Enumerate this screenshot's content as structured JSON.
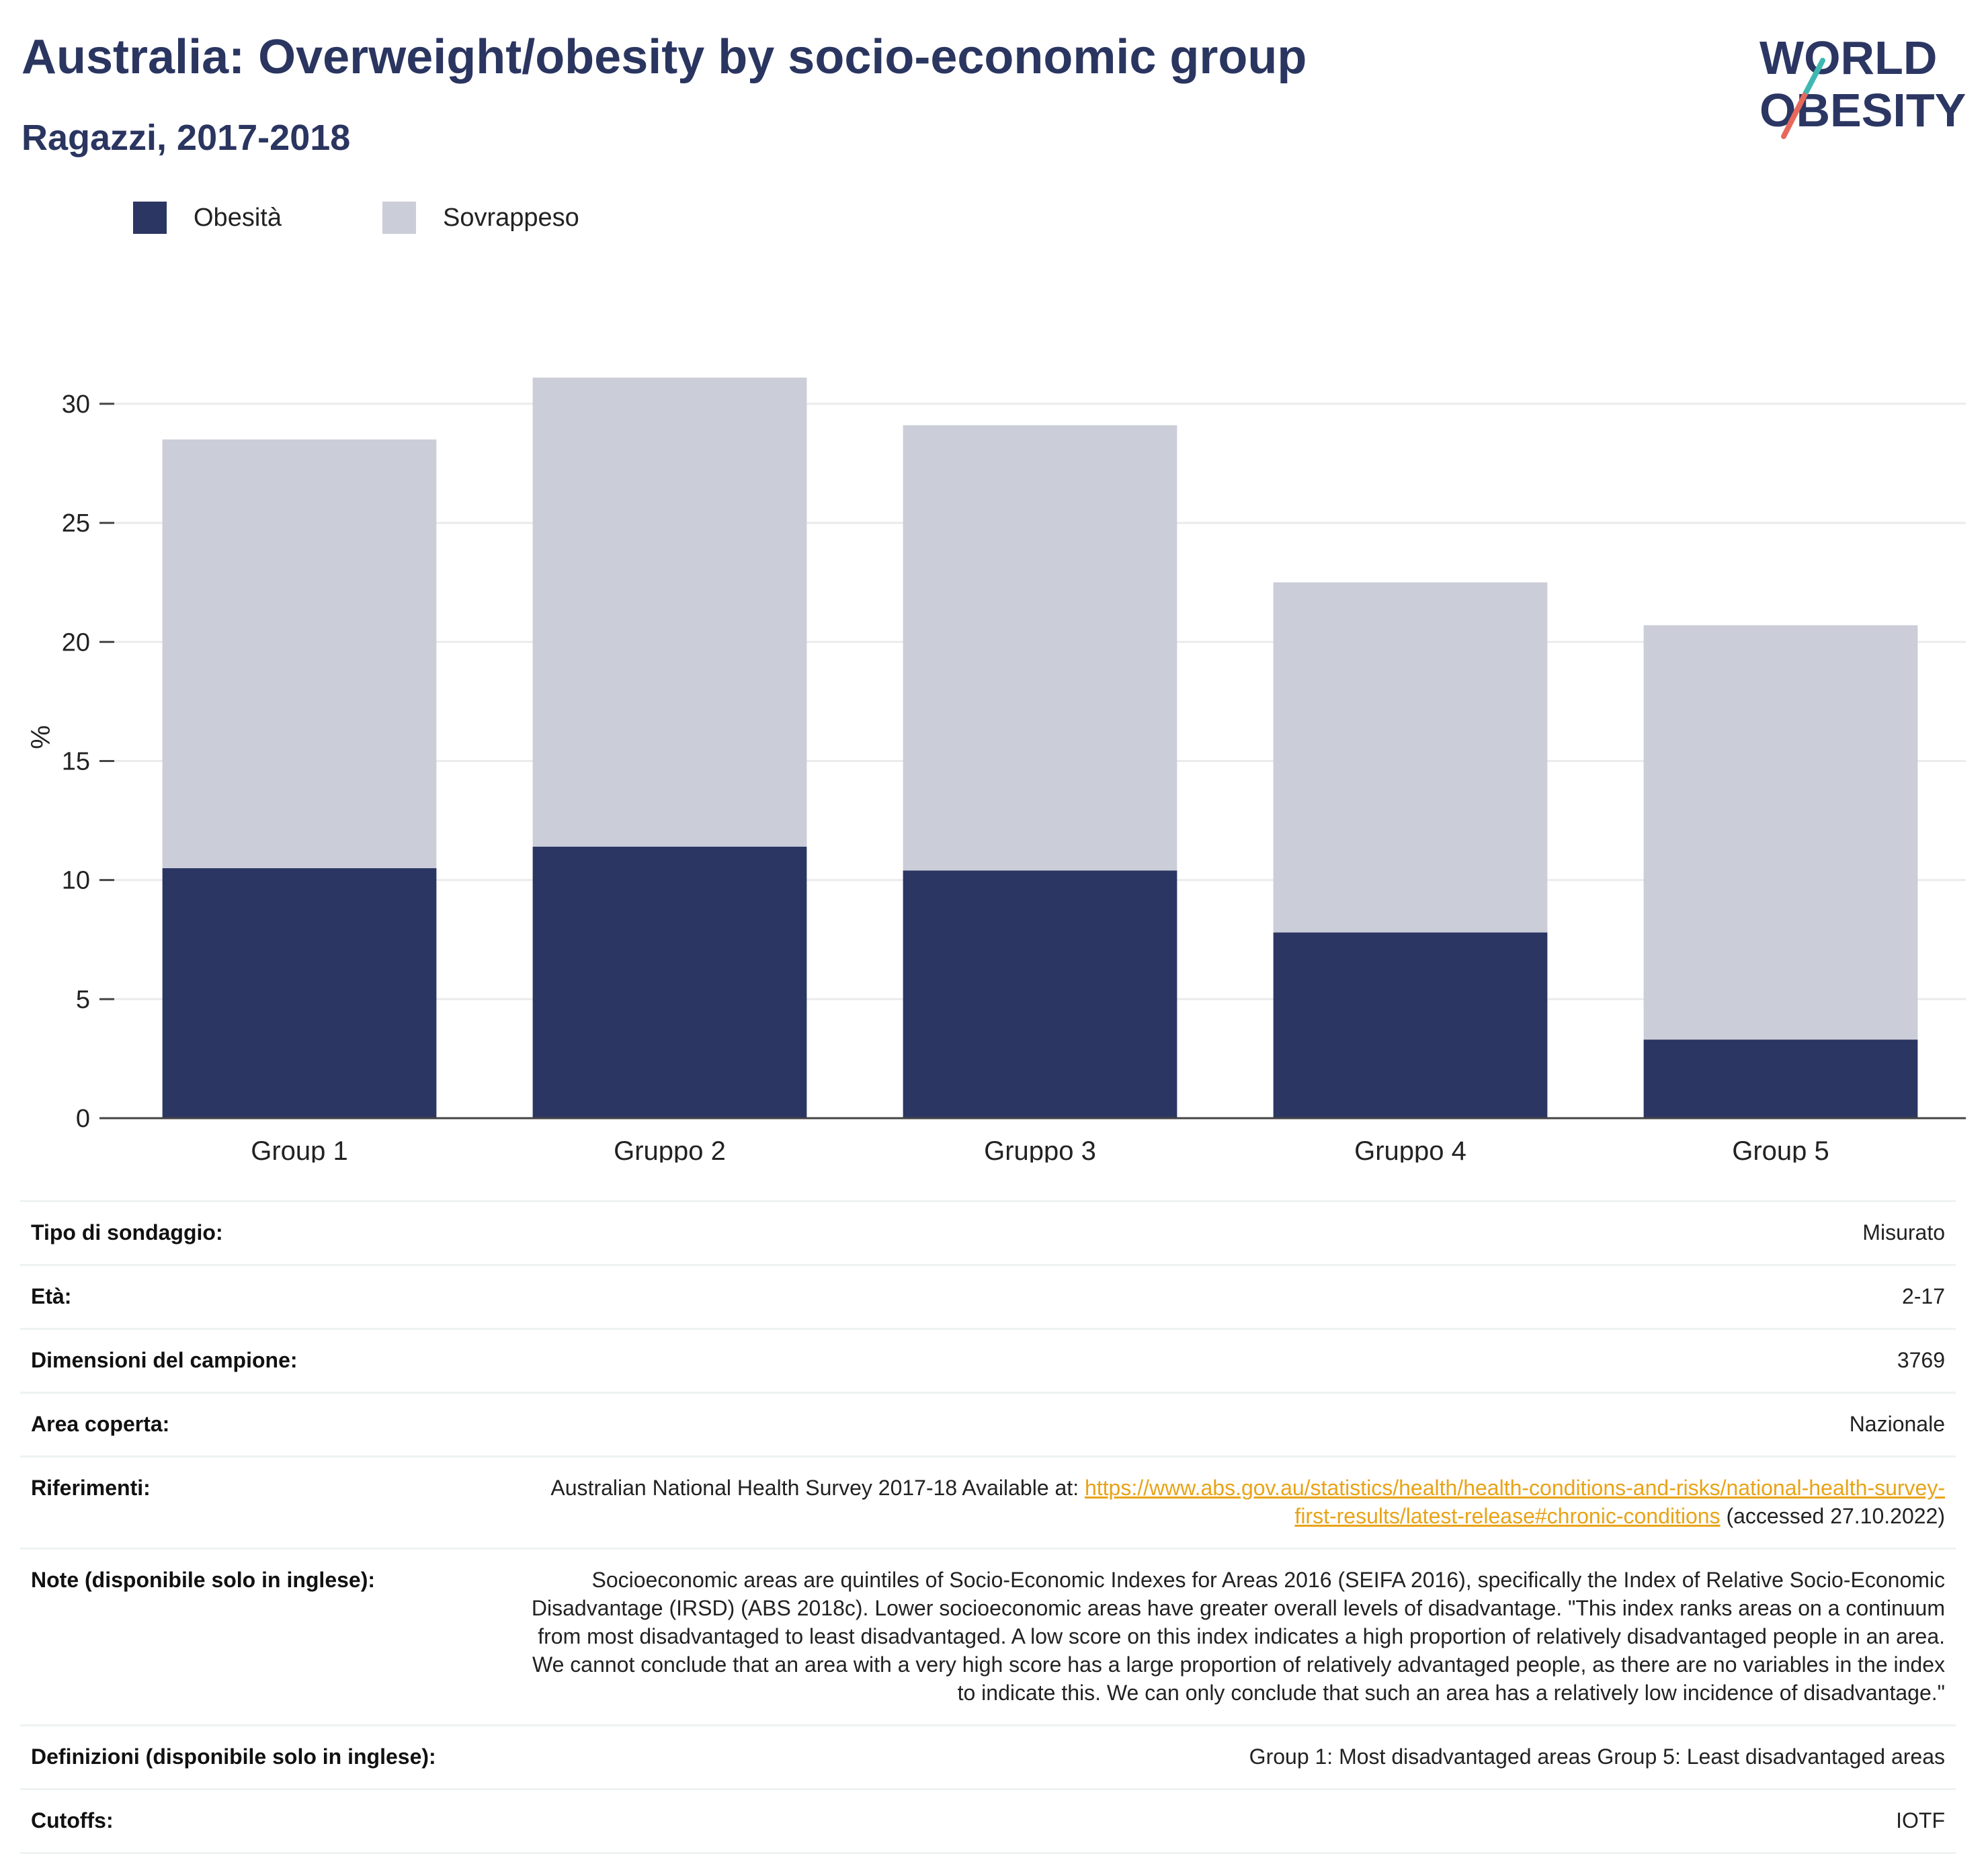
{
  "header": {
    "title": "Australia: Overweight/obesity by socio-economic group",
    "subtitle": "Ragazzi, 2017-2018",
    "logo_line1": "WORLD",
    "logo_line2": "OBESITY"
  },
  "legend": [
    {
      "label": "Obesità",
      "color": "#2b3663"
    },
    {
      "label": "Sovrappeso",
      "color": "#cbcdd8"
    }
  ],
  "chart_data": {
    "type": "bar",
    "stacked": true,
    "categories": [
      "Group 1",
      "Gruppo 2",
      "Gruppo 3",
      "Gruppo 4",
      "Group 5"
    ],
    "series": [
      {
        "name": "Obesità",
        "values": [
          10.5,
          11.4,
          10.4,
          7.8,
          3.3
        ],
        "color": "#2b3663"
      },
      {
        "name": "Sovrappeso",
        "values": [
          18.0,
          19.7,
          18.7,
          14.7,
          17.4
        ],
        "color": "#cbcdd8"
      }
    ],
    "ylabel": "%",
    "xlabel": "",
    "ylim": [
      0,
      32
    ],
    "yticks": [
      0,
      5,
      10,
      15,
      20,
      25,
      30
    ],
    "grid": true,
    "legend_position": "top-left"
  },
  "info": {
    "survey_type": {
      "label": "Tipo di sondaggio:",
      "value": "Misurato"
    },
    "age": {
      "label": "Età:",
      "value": "2-17"
    },
    "sample_size": {
      "label": "Dimensioni del campione:",
      "value": "3769"
    },
    "area": {
      "label": "Area coperta:",
      "value": "Nazionale"
    },
    "references": {
      "label": "Riferimenti:",
      "prefix": "Australian National Health Survey 2017-18 Available at: ",
      "link": "https://www.abs.gov.au/statistics/health/health-conditions-and-risks/national-health-survey-first-results/latest-release#chronic-conditions",
      "suffix": " (accessed 27.10.2022)"
    },
    "notes": {
      "label": "Note (disponibile solo in inglese):",
      "value": "Socioeconomic areas are quintiles of Socio-Economic Indexes for Areas 2016 (SEIFA 2016), specifically the Index of Relative Socio-Economic Disadvantage (IRSD) (ABS 2018c). Lower socioeconomic areas have greater overall levels of disadvantage. \"This index ranks areas on a continuum from most disadvantaged to least disadvantaged. A low score on this index indicates a high proportion of relatively disadvantaged people in an area. We cannot conclude that an area with a very high score has a large proportion of relatively advantaged people, as there are no variables in the index to indicate this. We can only conclude that such an area has a relatively low incidence of disadvantage.\""
    },
    "definitions": {
      "label": "Definizioni (disponibile solo in inglese):",
      "value": "Group 1: Most disadvantaged areas Group 5: Least disadvantaged areas"
    },
    "cutoffs": {
      "label": "Cutoffs:",
      "value": "IOTF"
    }
  }
}
